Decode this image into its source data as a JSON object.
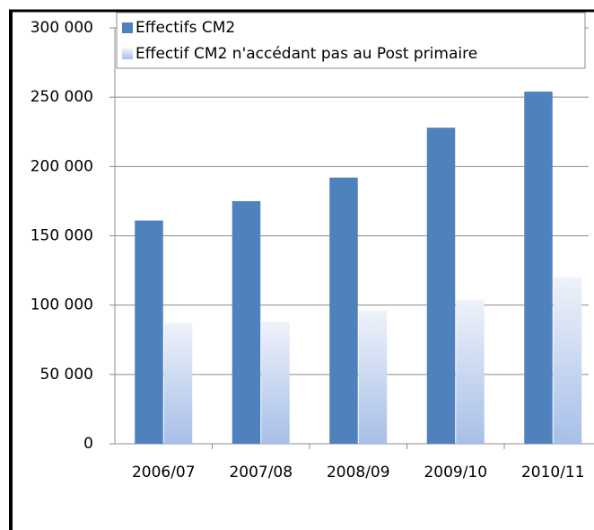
{
  "chart_data": {
    "type": "bar",
    "categories": [
      "2006/07",
      "2007/08",
      "2008/09",
      "2009/10",
      "2010/11"
    ],
    "series": [
      {
        "name": "Effectifs CM2",
        "color": "#4f81bd",
        "values": [
          161000,
          175000,
          192000,
          228000,
          254000
        ]
      },
      {
        "name": "Effectif CM2 n'accédant pas au Post primaire",
        "color": "#c6d5ef",
        "values": [
          87000,
          88000,
          96000,
          104000,
          120000
        ]
      }
    ],
    "ylim": [
      0,
      300000
    ],
    "yticks": [
      {
        "value": 0,
        "label": "0"
      },
      {
        "value": 50000,
        "label": "50 000"
      },
      {
        "value": 100000,
        "label": "100 000"
      },
      {
        "value": 150000,
        "label": "150 000"
      },
      {
        "value": 200000,
        "label": "200 000"
      },
      {
        "value": 250000,
        "label": "250 000"
      },
      {
        "value": 300000,
        "label": "300 000"
      }
    ],
    "grid": true
  }
}
